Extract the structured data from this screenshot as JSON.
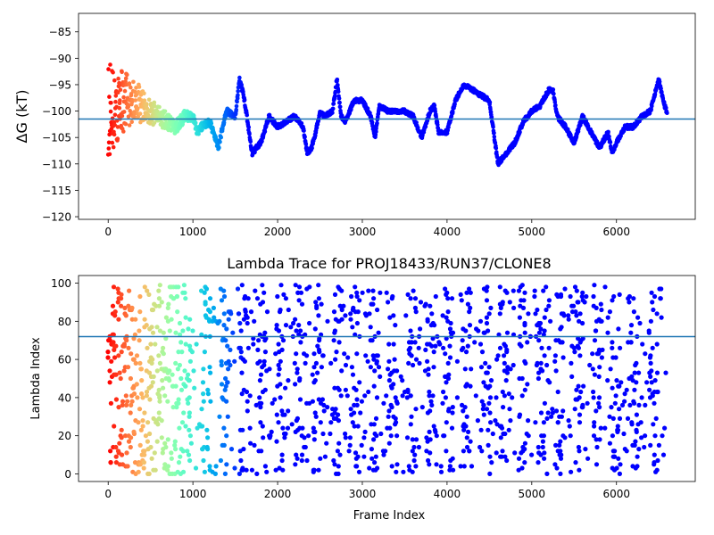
{
  "chart_data": [
    {
      "type": "scatter",
      "title": "",
      "xlabel": "",
      "ylabel": "ΔG (kT)",
      "xlim": [
        -350,
        6930
      ],
      "ylim": [
        -120.5,
        -81.5
      ],
      "xticks": [
        0,
        1000,
        2000,
        3000,
        4000,
        5000,
        6000
      ],
      "xticklabels": [
        "0",
        "1000",
        "2000",
        "3000",
        "4000",
        "5000",
        "6000"
      ],
      "yticks": [
        -85,
        -90,
        -95,
        -100,
        -105,
        -110,
        -115,
        -120
      ],
      "yticklabels": [
        "−85",
        "−90",
        "−95",
        "−100",
        "−105",
        "−110",
        "−115",
        "−120"
      ],
      "hline": -101.5,
      "hline_color": "#1f77b4",
      "colormap": "rainbow (reversed: red at frame 0 → violet at late frames)",
      "frames": [
        6600
      ],
      "trend_x": [
        0,
        100,
        200,
        300,
        400,
        500,
        600,
        700,
        800,
        900,
        1000,
        1050,
        1100,
        1200,
        1300,
        1350,
        1400,
        1500,
        1550,
        1600,
        1700,
        1750,
        1800,
        1900,
        2000,
        2100,
        2200,
        2300,
        2350,
        2400,
        2450,
        2500,
        2550,
        2650,
        2700,
        2750,
        2800,
        2900,
        3000,
        3100,
        3150,
        3200,
        3300,
        3400,
        3500,
        3600,
        3700,
        3800,
        3850,
        3900,
        4000,
        4100,
        4200,
        4300,
        4400,
        4500,
        4550,
        4600,
        4700,
        4800,
        4900,
        5000,
        5100,
        5200,
        5250,
        5300,
        5400,
        5500,
        5600,
        5700,
        5800,
        5900,
        5950,
        6000,
        6100,
        6200,
        6300,
        6400,
        6500,
        6550,
        6600
      ],
      "trend_y": [
        -100,
        -99,
        -98,
        -98,
        -99,
        -100,
        -101,
        -102,
        -103,
        -101,
        -101,
        -104,
        -103,
        -102,
        -107,
        -103,
        -100,
        -101,
        -94,
        -97,
        -108,
        -107,
        -106,
        -101,
        -103,
        -102,
        -101,
        -103,
        -108,
        -107,
        -104,
        -100,
        -101,
        -100,
        -94,
        -101,
        -102,
        -98,
        -98,
        -101,
        -105,
        -99,
        -100,
        -100,
        -100,
        -101,
        -105,
        -100,
        -99,
        -104,
        -104,
        -98,
        -95,
        -96,
        -97,
        -98,
        -104,
        -110,
        -108,
        -106,
        -102,
        -100,
        -99,
        -96,
        -96,
        -101,
        -103,
        -106,
        -101,
        -104,
        -107,
        -104,
        -108,
        -106,
        -103,
        -103,
        -101,
        -100,
        -94,
        -98,
        -100.5
      ]
    },
    {
      "type": "scatter",
      "title": "Lambda Trace for PROJ18433/RUN37/CLONE8",
      "xlabel": "Frame Index",
      "ylabel": "Lambda Index",
      "xlim": [
        -350,
        6930
      ],
      "ylim": [
        -4,
        104
      ],
      "xticks": [
        0,
        1000,
        2000,
        3000,
        4000,
        5000,
        6000
      ],
      "xticklabels": [
        "0",
        "1000",
        "2000",
        "3000",
        "4000",
        "5000",
        "6000"
      ],
      "yticks": [
        0,
        20,
        40,
        60,
        80,
        100
      ],
      "yticklabels": [
        "0",
        "20",
        "40",
        "60",
        "80",
        "100"
      ],
      "hline": 72,
      "hline_color": "#1f77b4",
      "colormap": "rainbow (reversed: red at frame 0 → violet at late frames)",
      "frames": [
        6600
      ],
      "lambda_range": [
        0,
        99
      ]
    }
  ]
}
